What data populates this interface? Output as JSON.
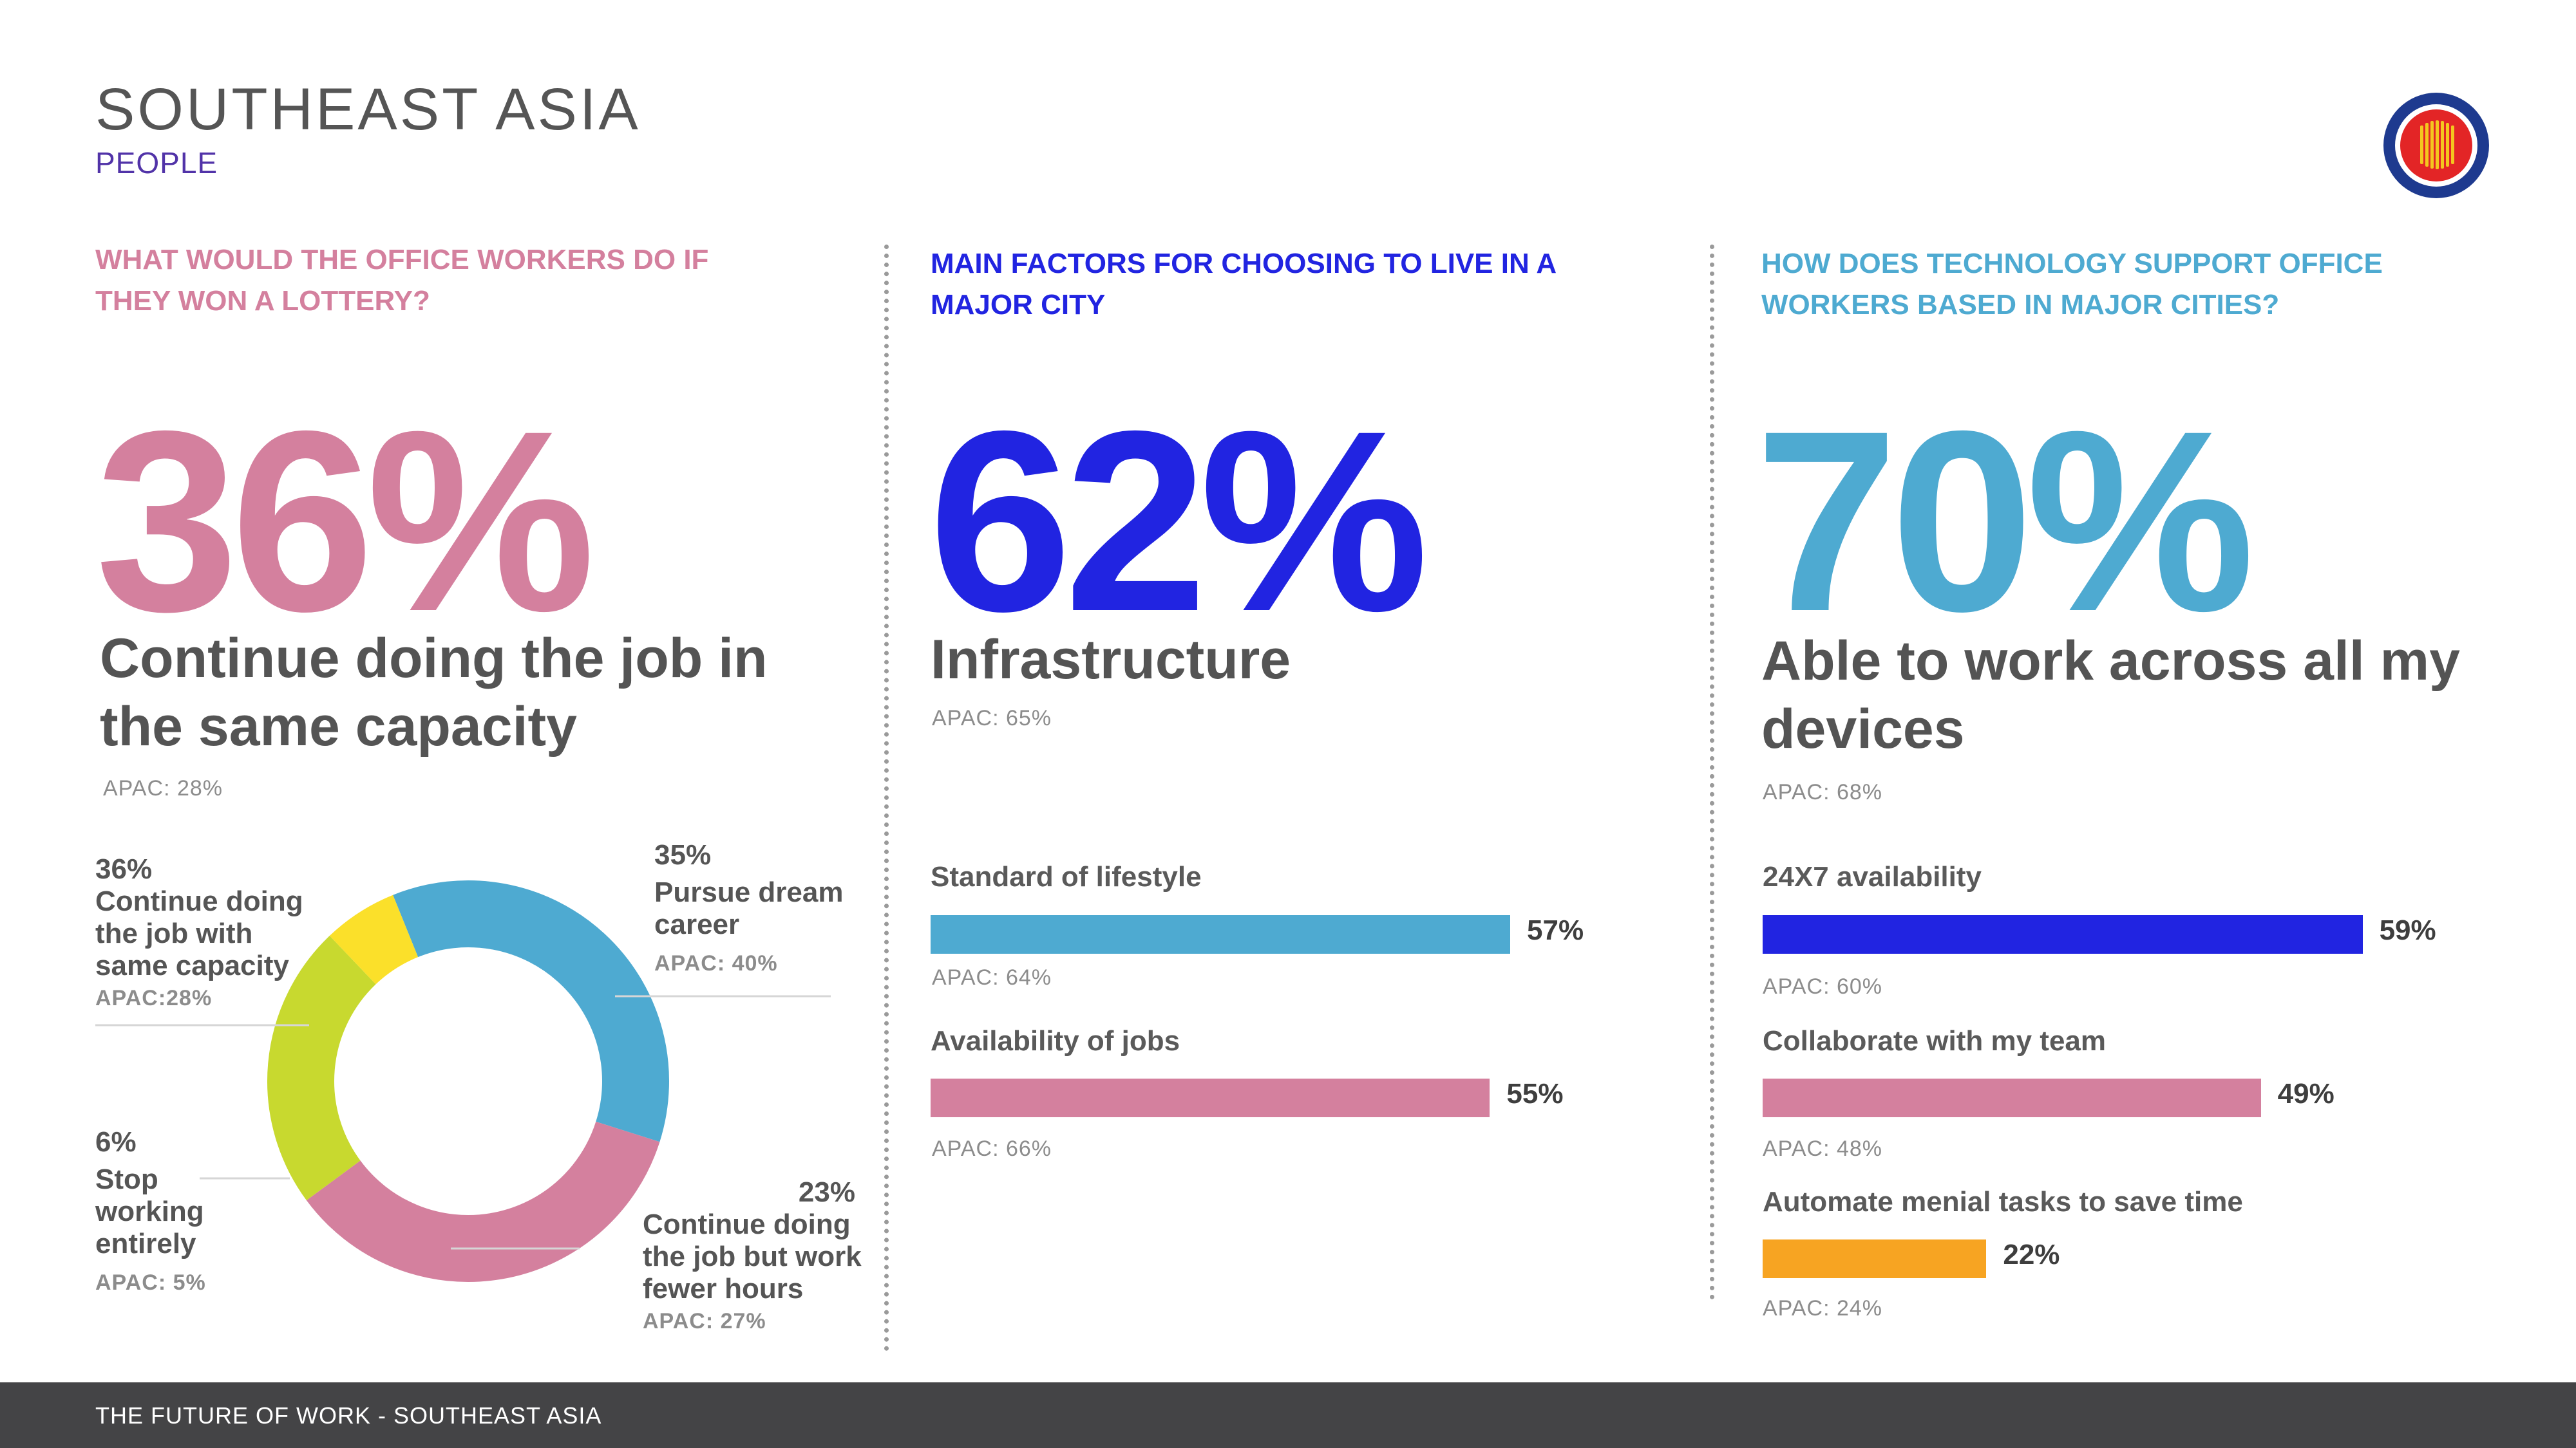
{
  "header": {
    "title": "SOUTHEAST ASIA",
    "subtitle": "PEOPLE"
  },
  "footer": {
    "text": "THE FUTURE OF WORK - SOUTHEAST ASIA"
  },
  "colors": {
    "pink": "#d4809e",
    "blue": "#2124e1",
    "cyan": "#4eaad1",
    "yellow": "#fbe02a",
    "lime": "#c8d92f",
    "orange": "#f7a422",
    "gray": "#545454"
  },
  "col1": {
    "question": "WHAT WOULD THE OFFICE WORKERS DO IF THEY WON A LOTTERY?",
    "big": "36%",
    "headline": "Continue doing the job in the same capacity",
    "apac": "APAC: 28%"
  },
  "col2": {
    "question": "MAIN FACTORS FOR CHOOSING TO LIVE IN A MAJOR CITY",
    "big": "62%",
    "headline": "Infrastructure",
    "apac": "APAC: 65%"
  },
  "col3": {
    "question": "HOW DOES TECHNOLOGY SUPPORT OFFICE WORKERS BASED IN MAJOR CITIES?",
    "big": "70%",
    "headline": "Able to work across all my devices",
    "apac": "APAC: 68%"
  },
  "chart_data": [
    {
      "type": "pie",
      "title": "What would the office workers do if they won a lottery?",
      "categories": [
        "Continue doing the job with same capacity",
        "Pursue dream career",
        "Continue doing the job but work fewer hours",
        "Stop working entirely"
      ],
      "values": [
        36,
        35,
        23,
        6
      ],
      "value_labels": [
        "36%",
        "35%",
        "23%",
        "6%"
      ],
      "label_lines": [
        [
          "Continue doing",
          "the job with",
          "same capacity"
        ],
        [
          "Pursue dream",
          "career"
        ],
        [
          "Continue doing",
          "the job but work",
          "fewer hours"
        ],
        [
          "Stop",
          "working",
          "entirely"
        ]
      ],
      "apac": [
        "APAC:28%",
        "APAC: 40%",
        "APAC: 27%",
        "APAC: 5%"
      ],
      "colors": [
        "#4eaad1",
        "#d4809e",
        "#c8d92f",
        "#fbe02a"
      ]
    },
    {
      "type": "bar",
      "title": "Main factors for choosing to live in a major city",
      "categories": [
        "Standard of lifestyle",
        "Availability of jobs"
      ],
      "values": [
        57,
        55
      ],
      "value_labels": [
        "57%",
        "55%"
      ],
      "apac": [
        "APAC: 64%",
        "APAC: 66%"
      ],
      "colors": [
        "#4eaad1",
        "#d4809e"
      ],
      "xlim": [
        0,
        100
      ]
    },
    {
      "type": "bar",
      "title": "How does technology support office workers based in major cities?",
      "categories": [
        "24X7 availability",
        "Collaborate with my team",
        "Automate menial tasks to save time"
      ],
      "values": [
        59,
        49,
        22
      ],
      "value_labels": [
        "59%",
        "49%",
        "22%"
      ],
      "apac": [
        "APAC: 60%",
        "APAC: 48%",
        "APAC: 24%"
      ],
      "colors": [
        "#2124e1",
        "#d4809e",
        "#f7a422"
      ],
      "xlim": [
        0,
        100
      ]
    }
  ]
}
